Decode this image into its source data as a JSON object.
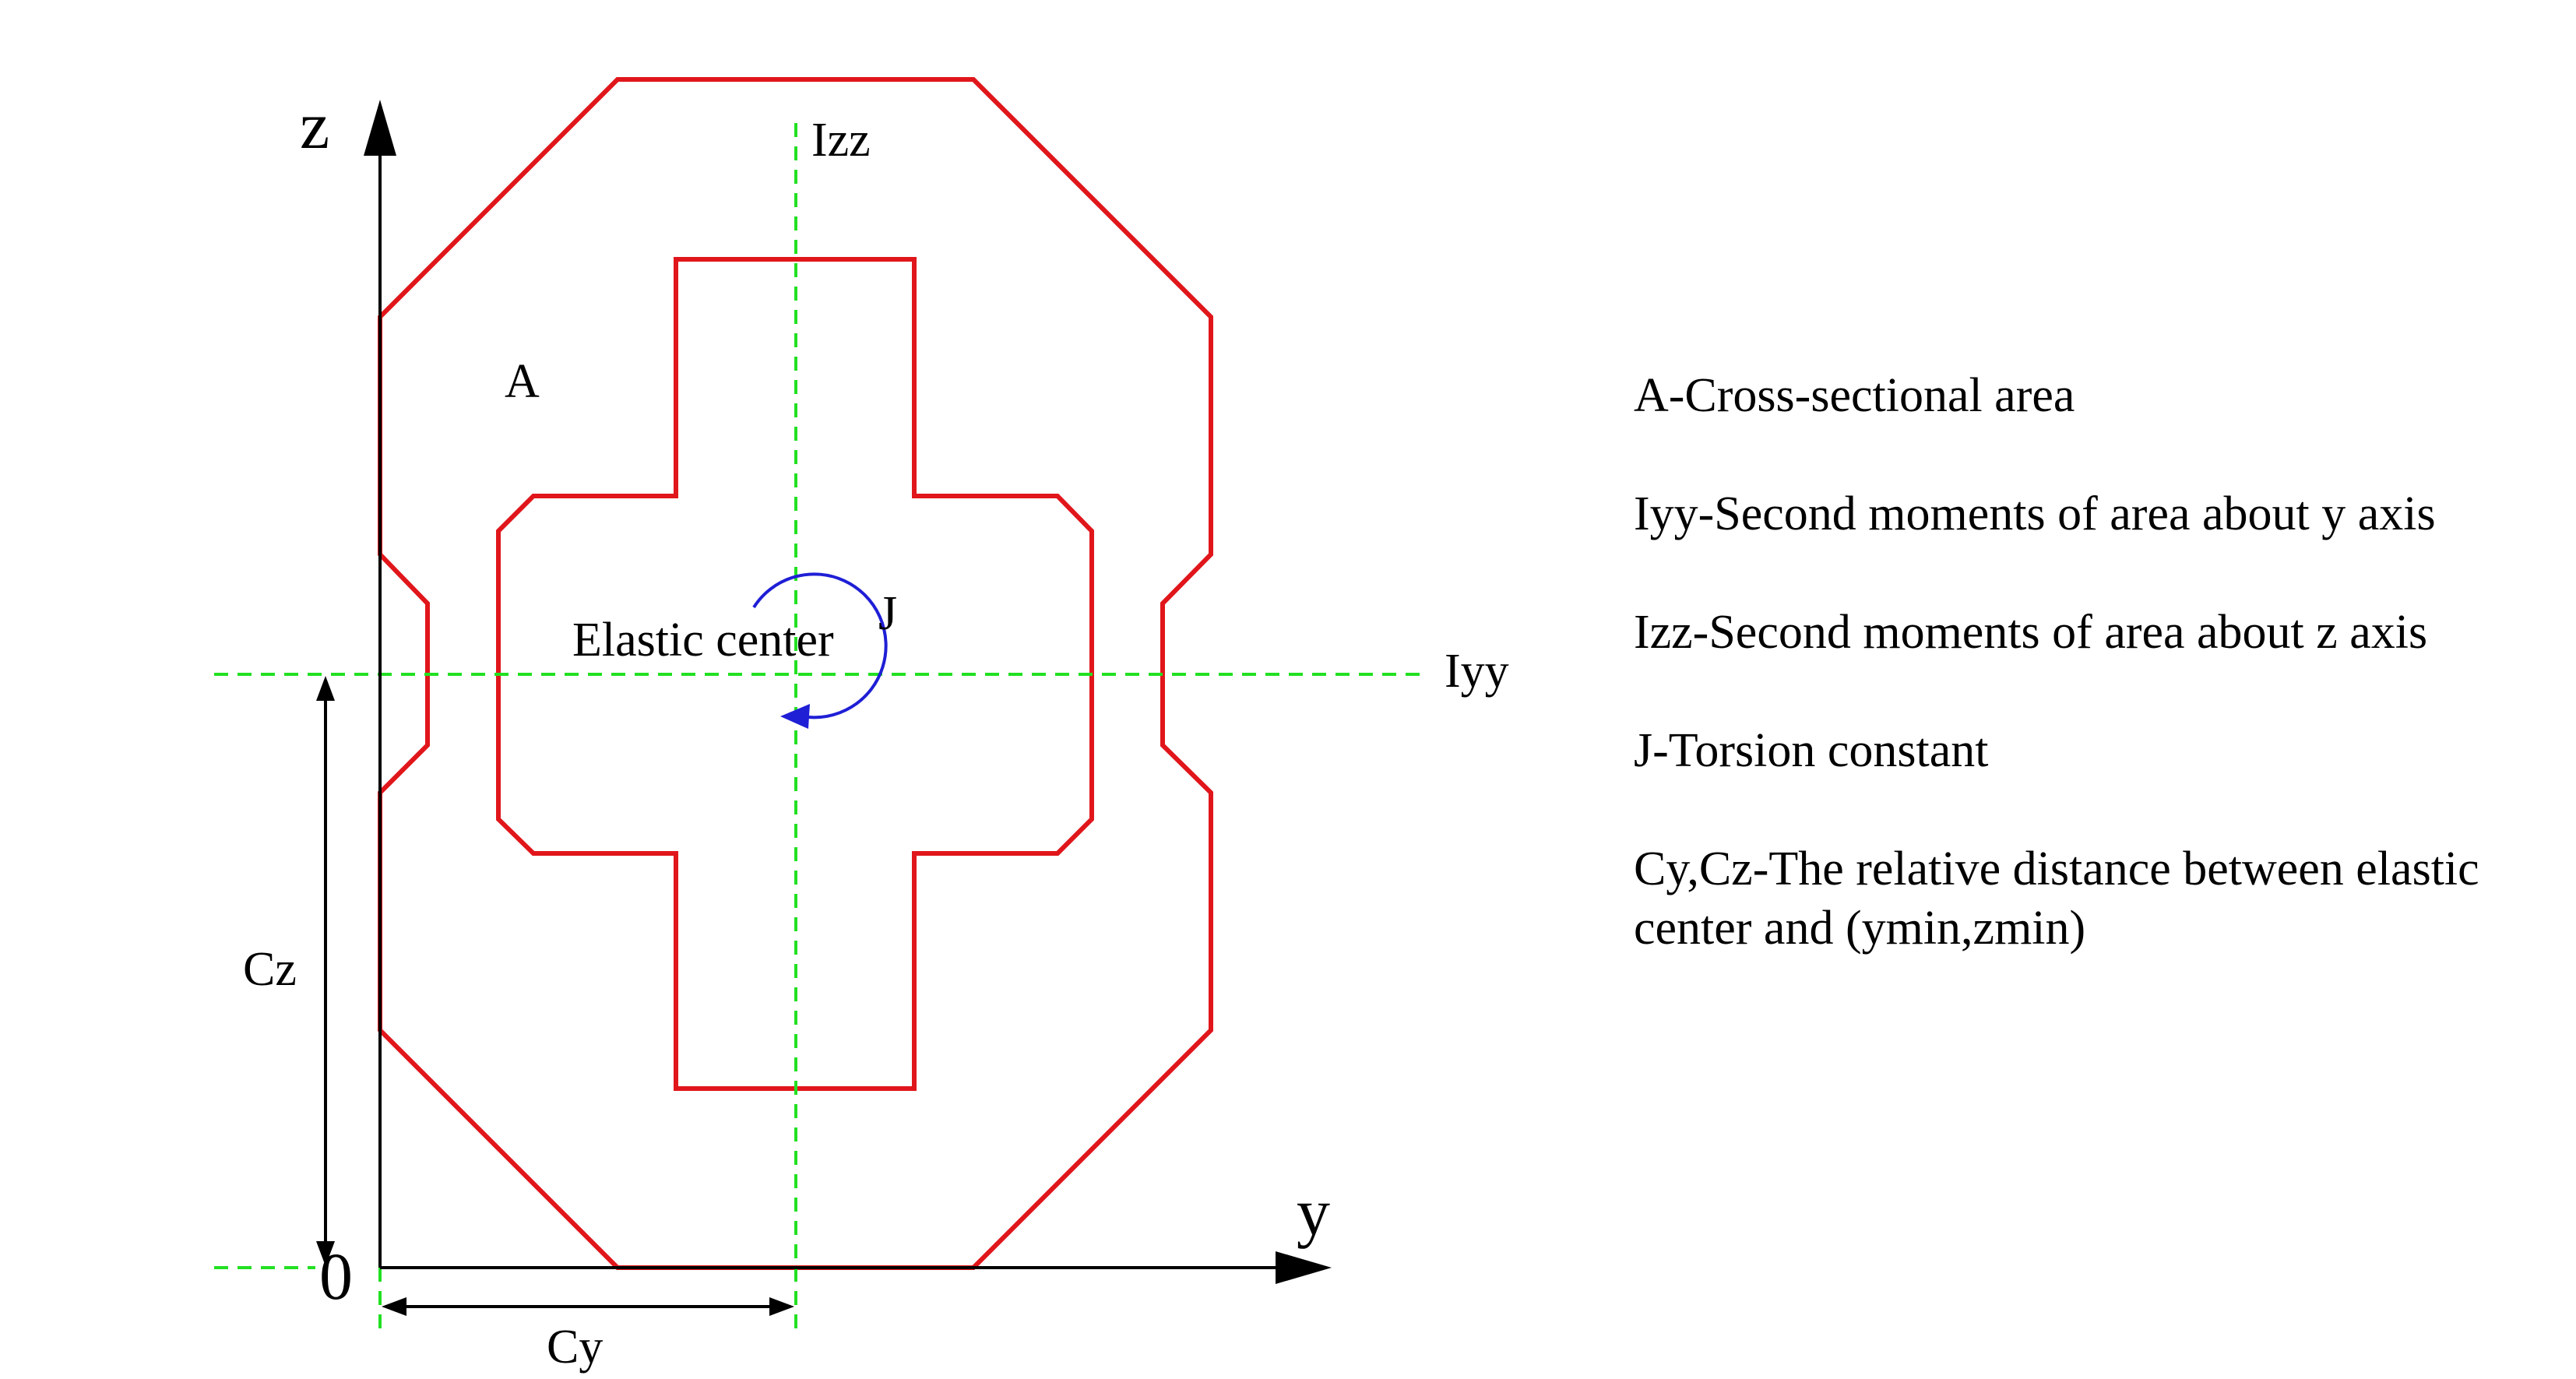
{
  "colors": {
    "section_outline": "#e0161b",
    "centroid_axes": "#22e022",
    "torsion_arrow": "#1f1fd6",
    "axes": "#000000"
  },
  "labels": {
    "z_axis": "z",
    "y_axis": "y",
    "origin": "0",
    "izz": "Izz",
    "iyy": "Iyy",
    "area": "A",
    "torsion": "J",
    "elastic_center": "Elastic center",
    "cz": "Cz",
    "cy": "Cy"
  },
  "legend": [
    {
      "text": "A-Cross-sectional area"
    },
    {
      "text": "Iyy-Second moments of area about y axis"
    },
    {
      "text": "Izz-Second moments of area about z axis"
    },
    {
      "text": "J-Torsion constant"
    },
    {
      "text": "Cy,Cz-The relative distance between elastic center and (ymin,zmin)"
    }
  ]
}
